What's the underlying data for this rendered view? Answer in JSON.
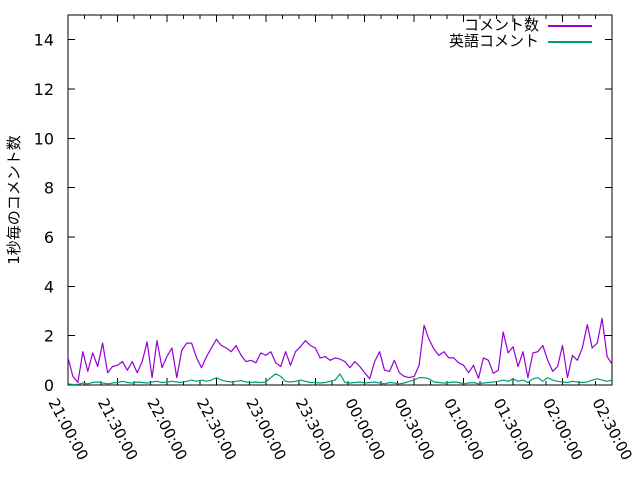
{
  "chart_data": {
    "type": "line",
    "title": "",
    "xlabel": "",
    "ylabel": "1秒毎のコメント数",
    "ylim": [
      0,
      15
    ],
    "y_ticks": [
      0,
      2,
      4,
      6,
      8,
      10,
      12,
      14
    ],
    "x_tick_labels": [
      "21:00:00",
      "21:30:00",
      "22:00:00",
      "22:30:00",
      "23:00:00",
      "23:30:00",
      "00:00:00",
      "00:30:00",
      "01:00:00",
      "01:30:00",
      "02:00:00",
      "02:30:00"
    ],
    "x_span_min": 330,
    "x_major_interval_min": 30,
    "x_minor_interval_min": 10,
    "x_interval_min": 3,
    "grid": false,
    "legend_position": "top-right-inside",
    "axis_color": "#000000",
    "background_color": "#ffffff",
    "series": [
      {
        "name": "コメント数",
        "slug": "comments",
        "color": "#9400d3",
        "values": [
          1.1,
          0.35,
          0.1,
          1.35,
          0.55,
          1.3,
          0.75,
          1.7,
          0.5,
          0.75,
          0.8,
          0.95,
          0.6,
          0.95,
          0.5,
          0.95,
          1.75,
          0.3,
          1.8,
          0.7,
          1.15,
          1.5,
          0.3,
          1.4,
          1.7,
          1.7,
          1.1,
          0.7,
          1.15,
          1.5,
          1.85,
          1.6,
          1.5,
          1.35,
          1.6,
          1.2,
          0.95,
          1.0,
          0.9,
          1.3,
          1.2,
          1.35,
          0.9,
          0.75,
          1.35,
          0.8,
          1.35,
          1.55,
          1.8,
          1.6,
          1.5,
          1.1,
          1.15,
          1.0,
          1.1,
          1.05,
          0.95,
          0.7,
          0.95,
          0.75,
          0.5,
          0.25,
          0.95,
          1.35,
          0.6,
          0.55,
          1.0,
          0.5,
          0.35,
          0.3,
          0.35,
          0.8,
          2.42,
          1.85,
          1.45,
          1.2,
          1.35,
          1.1,
          1.1,
          0.9,
          0.8,
          0.5,
          0.8,
          0.27,
          1.1,
          1.0,
          0.47,
          0.6,
          2.15,
          1.3,
          1.55,
          0.75,
          1.35,
          0.3,
          1.3,
          1.35,
          1.6,
          1.0,
          0.55,
          0.75,
          1.6,
          0.3,
          1.2,
          1.0,
          1.5,
          2.45,
          1.5,
          1.7,
          2.7,
          1.15,
          0.85
        ]
      },
      {
        "name": "英語コメント",
        "slug": "english-comments",
        "color": "#009e73",
        "values": [
          0.05,
          0.02,
          0.03,
          0.08,
          0.05,
          0.1,
          0.12,
          0.08,
          0.05,
          0.08,
          0.1,
          0.15,
          0.1,
          0.08,
          0.12,
          0.1,
          0.08,
          0.12,
          0.15,
          0.1,
          0.12,
          0.15,
          0.12,
          0.1,
          0.15,
          0.2,
          0.15,
          0.2,
          0.15,
          0.2,
          0.3,
          0.2,
          0.15,
          0.12,
          0.15,
          0.18,
          0.12,
          0.1,
          0.12,
          0.1,
          0.12,
          0.3,
          0.45,
          0.35,
          0.15,
          0.12,
          0.15,
          0.2,
          0.15,
          0.1,
          0.1,
          0.08,
          0.1,
          0.15,
          0.2,
          0.45,
          0.1,
          0.08,
          0.1,
          0.12,
          0.08,
          0.1,
          0.12,
          0.08,
          0.05,
          0.1,
          0.08,
          0.05,
          0.08,
          0.15,
          0.2,
          0.3,
          0.3,
          0.25,
          0.12,
          0.1,
          0.08,
          0.1,
          0.12,
          0.1,
          0.05,
          0.08,
          0.1,
          0.05,
          0.08,
          0.1,
          0.12,
          0.15,
          0.2,
          0.15,
          0.25,
          0.15,
          0.2,
          0.1,
          0.25,
          0.3,
          0.15,
          0.3,
          0.2,
          0.15,
          0.12,
          0.1,
          0.15,
          0.12,
          0.1,
          0.12,
          0.2,
          0.25,
          0.2,
          0.15,
          0.2
        ]
      }
    ]
  }
}
